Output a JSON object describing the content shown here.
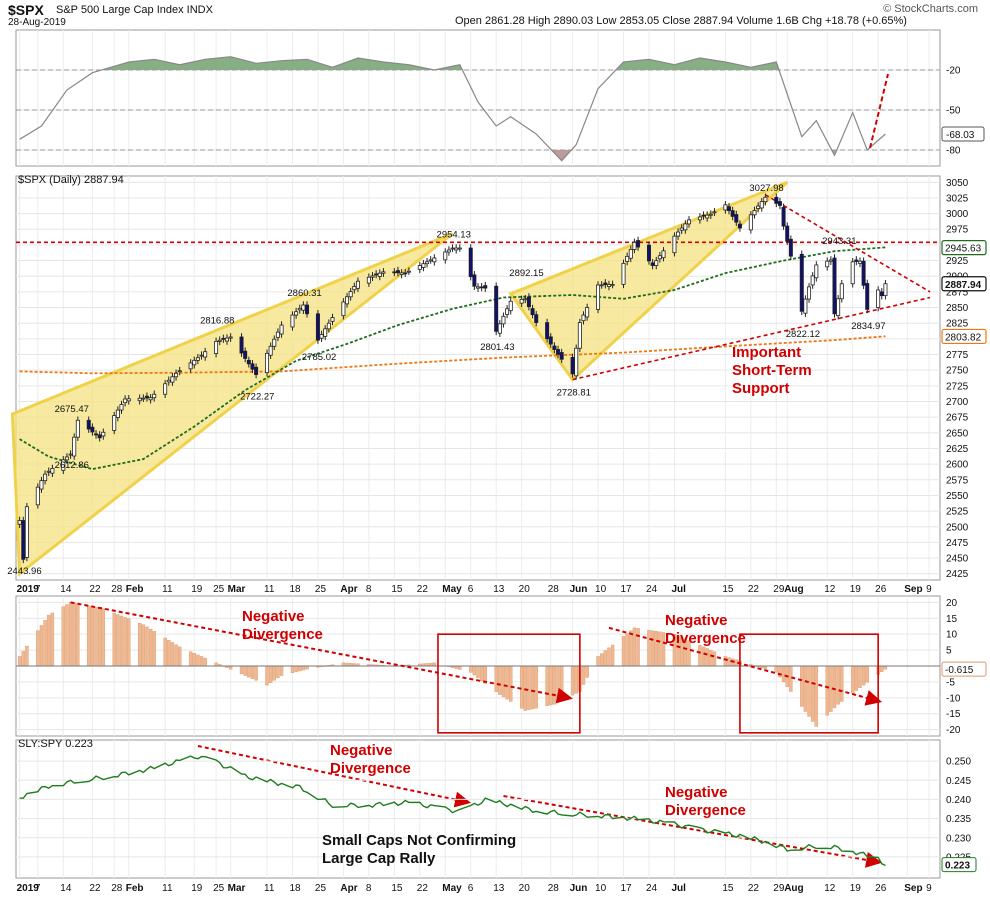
{
  "header": {
    "symbol": "$SPX",
    "name": "S&P 500 Large Cap Index INDX",
    "date": "28-Aug-2019",
    "quote": "Open 2861.28 High 2890.03 Low 2853.05 Close 2887.94 Volume 1.6B Chg +18.78 (+0.65%)",
    "brand": "© StockCharts.com"
  },
  "price_label": "$SPX (Daily) 2887.94",
  "sly_label": "SLY:SPY 0.223",
  "annotations": {
    "neg_div": "Negative\nDivergence",
    "support": "Important\nShort-Term\nSupport",
    "small_caps": "Small Caps Not Confirming\nLarge Cap Rally"
  },
  "colors": {
    "up_candle": "#ffffff",
    "down_candle": "#101070",
    "wedge_fill": "#f4e27f",
    "ma50": "#1e6b1e",
    "ma200": "#ee7711",
    "resistance": "#d00000",
    "histogram": "#f0b890",
    "ratio_line": "#1e7d1e",
    "momentum_fill": "#6a9a68"
  },
  "chart_data": [
    {
      "type": "line",
      "title": "Momentum oscillator",
      "ylim": [
        -92,
        10
      ],
      "y_ticks": [
        "-20",
        "-50",
        "-80"
      ],
      "y_tick_values": [
        -20,
        -50,
        -80
      ],
      "last_value_label": "-68.03",
      "x": [
        "2019-01-02",
        "2019-01-08",
        "2019-01-15",
        "2019-01-22",
        "2019-02-01",
        "2019-02-08",
        "2019-02-15",
        "2019-02-22",
        "2019-03-01",
        "2019-03-08",
        "2019-03-15",
        "2019-03-22",
        "2019-03-29",
        "2019-04-05",
        "2019-04-12",
        "2019-04-19",
        "2019-04-26",
        "2019-05-03",
        "2019-05-08",
        "2019-05-13",
        "2019-05-17",
        "2019-05-24",
        "2019-05-31",
        "2019-06-04",
        "2019-06-10",
        "2019-06-17",
        "2019-06-24",
        "2019-07-01",
        "2019-07-08",
        "2019-07-15",
        "2019-07-22",
        "2019-07-29",
        "2019-08-01",
        "2019-08-05",
        "2019-08-09",
        "2019-08-14",
        "2019-08-19",
        "2019-08-23",
        "2019-08-28"
      ],
      "values": [
        -72,
        -62,
        -35,
        -22,
        -14,
        -12,
        -16,
        -12,
        -10,
        -15,
        -13,
        -12,
        -18,
        -11,
        -14,
        -16,
        -20,
        -16,
        -44,
        -62,
        -55,
        -68,
        -88,
        -76,
        -34,
        -14,
        -12,
        -16,
        -11,
        -14,
        -18,
        -14,
        -38,
        -70,
        -58,
        -84,
        -52,
        -80,
        -68
      ]
    },
    {
      "type": "bar",
      "title": "$SPX (Daily) 2887.94",
      "ylim": [
        2415,
        3060
      ],
      "y_ticks": [
        "3050",
        "3025",
        "3000",
        "2975",
        "2950",
        "2925",
        "2900",
        "2875",
        "2850",
        "2825",
        "2800",
        "2775",
        "2750",
        "2725",
        "2700",
        "2675",
        "2650",
        "2625",
        "2600",
        "2575",
        "2550",
        "2525",
        "2500",
        "2475",
        "2450",
        "2425"
      ],
      "y_tick_values": [
        3050,
        3025,
        3000,
        2975,
        2950,
        2925,
        2900,
        2875,
        2850,
        2825,
        2800,
        2775,
        2750,
        2725,
        2700,
        2675,
        2650,
        2625,
        2600,
        2575,
        2550,
        2525,
        2500,
        2475,
        2450,
        2425
      ],
      "x_labels": [
        "2019",
        "7",
        "14",
        "22",
        "28",
        "Feb",
        "11",
        "19",
        "25",
        "Mar",
        "11",
        "18",
        "25",
        "Apr",
        "8",
        "15",
        "22",
        "May",
        "6",
        "13",
        "20",
        "28",
        "Jun",
        "10",
        "17",
        "24",
        "Jul",
        "15",
        "22",
        "29",
        "Aug",
        "12",
        "19",
        "26",
        "Sep",
        "9"
      ],
      "x_label_dates": [
        "2019-01-02",
        "2019-01-07",
        "2019-01-14",
        "2019-01-22",
        "2019-01-28",
        "2019-02-01",
        "2019-02-11",
        "2019-02-19",
        "2019-02-25",
        "2019-03-01",
        "2019-03-11",
        "2019-03-18",
        "2019-03-25",
        "2019-04-01",
        "2019-04-08",
        "2019-04-15",
        "2019-04-22",
        "2019-04-29",
        "2019-05-06",
        "2019-05-13",
        "2019-05-20",
        "2019-05-28",
        "2019-06-03",
        "2019-06-10",
        "2019-06-17",
        "2019-06-24",
        "2019-07-01",
        "2019-07-15",
        "2019-07-22",
        "2019-07-29",
        "2019-08-01",
        "2019-08-12",
        "2019-08-19",
        "2019-08-26",
        "2019-09-03",
        "2019-09-09"
      ],
      "labels": [
        {
          "text": "2443.96",
          "date": "2019-01-03",
          "value": 2443.96
        },
        {
          "text": "2612.86",
          "date": "2019-01-16",
          "value": 2612.86
        },
        {
          "text": "2675.47",
          "date": "2019-01-16",
          "value": 2675.47
        },
        {
          "text": "2816.88",
          "date": "2019-02-25",
          "value": 2816.88
        },
        {
          "text": "2722.27",
          "date": "2019-03-08",
          "value": 2722.27
        },
        {
          "text": "2860.31",
          "date": "2019-03-21",
          "value": 2860.31
        },
        {
          "text": "2785.02",
          "date": "2019-03-25",
          "value": 2785.02
        },
        {
          "text": "2954.13",
          "date": "2019-05-01",
          "value": 2954.13
        },
        {
          "text": "2892.15",
          "date": "2019-05-21",
          "value": 2892.15
        },
        {
          "text": "2801.43",
          "date": "2019-05-13",
          "value": 2801.43
        },
        {
          "text": "2728.81",
          "date": "2019-06-03",
          "value": 2728.81
        },
        {
          "text": "3027.98",
          "date": "2019-07-26",
          "value": 3027.98
        },
        {
          "text": "2943.31",
          "date": "2019-08-15",
          "value": 2943.31
        },
        {
          "text": "2822.12",
          "date": "2019-08-05",
          "value": 2822.12
        },
        {
          "text": "2834.97",
          "date": "2019-08-23",
          "value": 2834.97
        }
      ],
      "price_tags": [
        {
          "text": "2945.63",
          "value": 2945.63,
          "series": "50-day MA"
        },
        {
          "text": "2887.94",
          "value": 2887.94,
          "series": "close"
        },
        {
          "text": "2803.82",
          "value": 2803.82,
          "series": "200-day MA"
        }
      ],
      "resistance": 2954.13,
      "close_points": [
        [
          "2019-01-02",
          2510
        ],
        [
          "2019-01-03",
          2448
        ],
        [
          "2019-01-04",
          2532
        ],
        [
          "2019-01-09",
          2584
        ],
        [
          "2019-01-16",
          2616
        ],
        [
          "2019-01-18",
          2670
        ],
        [
          "2019-01-24",
          2642
        ],
        [
          "2019-01-31",
          2704
        ],
        [
          "2019-02-07",
          2706
        ],
        [
          "2019-02-14",
          2745
        ],
        [
          "2019-02-21",
          2774
        ],
        [
          "2019-02-25",
          2796
        ],
        [
          "2019-03-01",
          2803
        ],
        [
          "2019-03-08",
          2743
        ],
        [
          "2019-03-15",
          2822
        ],
        [
          "2019-03-21",
          2854
        ],
        [
          "2019-03-25",
          2798
        ],
        [
          "2019-03-29",
          2834
        ],
        [
          "2019-04-05",
          2892
        ],
        [
          "2019-04-12",
          2907
        ],
        [
          "2019-04-18",
          2905
        ],
        [
          "2019-04-25",
          2926
        ],
        [
          "2019-05-01",
          2945
        ],
        [
          "2019-05-03",
          2945
        ],
        [
          "2019-05-07",
          2884
        ],
        [
          "2019-05-10",
          2881
        ],
        [
          "2019-05-13",
          2812
        ],
        [
          "2019-05-17",
          2860
        ],
        [
          "2019-05-21",
          2864
        ],
        [
          "2019-05-24",
          2826
        ],
        [
          "2019-05-29",
          2783
        ],
        [
          "2019-06-03",
          2744
        ],
        [
          "2019-06-05",
          2826
        ],
        [
          "2019-06-10",
          2886
        ],
        [
          "2019-06-14",
          2887
        ],
        [
          "2019-06-20",
          2954
        ],
        [
          "2019-06-25",
          2917
        ],
        [
          "2019-07-01",
          2964
        ],
        [
          "2019-07-05",
          2990
        ],
        [
          "2019-07-11",
          2999
        ],
        [
          "2019-07-15",
          3014
        ],
        [
          "2019-07-19",
          2977
        ],
        [
          "2019-07-26",
          3026
        ],
        [
          "2019-07-30",
          3013
        ],
        [
          "2019-07-31",
          2980
        ],
        [
          "2019-08-02",
          2932
        ],
        [
          "2019-08-05",
          2844
        ],
        [
          "2019-08-07",
          2883
        ],
        [
          "2019-08-09",
          2918
        ],
        [
          "2019-08-13",
          2926
        ],
        [
          "2019-08-14",
          2840
        ],
        [
          "2019-08-16",
          2888
        ],
        [
          "2019-08-19",
          2923
        ],
        [
          "2019-08-21",
          2924
        ],
        [
          "2019-08-23",
          2847
        ],
        [
          "2019-08-26",
          2878
        ],
        [
          "2019-08-27",
          2869
        ],
        [
          "2019-08-28",
          2888
        ]
      ],
      "ma50_points": [
        [
          "2019-01-02",
          2640
        ],
        [
          "2019-01-10",
          2612
        ],
        [
          "2019-01-22",
          2592
        ],
        [
          "2019-02-05",
          2608
        ],
        [
          "2019-02-19",
          2660
        ],
        [
          "2019-03-05",
          2718
        ],
        [
          "2019-03-19",
          2765
        ],
        [
          "2019-04-02",
          2792
        ],
        [
          "2019-04-16",
          2822
        ],
        [
          "2019-05-01",
          2848
        ],
        [
          "2019-05-15",
          2866
        ],
        [
          "2019-06-03",
          2870
        ],
        [
          "2019-06-17",
          2864
        ],
        [
          "2019-07-01",
          2878
        ],
        [
          "2019-07-15",
          2905
        ],
        [
          "2019-07-31",
          2925
        ],
        [
          "2019-08-14",
          2940
        ],
        [
          "2019-08-28",
          2946
        ]
      ],
      "ma200_points": [
        [
          "2019-01-02",
          2748
        ],
        [
          "2019-01-22",
          2745
        ],
        [
          "2019-02-15",
          2746
        ],
        [
          "2019-03-15",
          2748
        ],
        [
          "2019-04-15",
          2760
        ],
        [
          "2019-05-15",
          2770
        ],
        [
          "2019-06-17",
          2778
        ],
        [
          "2019-07-15",
          2788
        ],
        [
          "2019-08-14",
          2798
        ],
        [
          "2019-08-28",
          2804
        ]
      ]
    },
    {
      "type": "bar",
      "title": "Momentum histogram",
      "ylim": [
        -22,
        22
      ],
      "y_ticks": [
        "20",
        "15",
        "10",
        "5",
        "0",
        "-5",
        "-10",
        "-15",
        "-20"
      ],
      "y_tick_values": [
        20,
        15,
        10,
        5,
        0,
        -5,
        -10,
        -15,
        -20
      ],
      "last_value_label": "-0.615",
      "points": [
        [
          "2019-01-02",
          3
        ],
        [
          "2019-01-10",
          16
        ],
        [
          "2019-01-16",
          20
        ],
        [
          "2019-01-25",
          18
        ],
        [
          "2019-02-05",
          13
        ],
        [
          "2019-02-15",
          6
        ],
        [
          "2019-02-25",
          1
        ],
        [
          "2019-03-05",
          -3
        ],
        [
          "2019-03-11",
          -6
        ],
        [
          "2019-03-15",
          -3
        ],
        [
          "2019-03-22",
          -1
        ],
        [
          "2019-04-01",
          1
        ],
        [
          "2019-04-15",
          0
        ],
        [
          "2019-04-26",
          1
        ],
        [
          "2019-05-06",
          -2
        ],
        [
          "2019-05-14",
          -9
        ],
        [
          "2019-05-21",
          -14
        ],
        [
          "2019-05-29",
          -12
        ],
        [
          "2019-06-05",
          -8
        ],
        [
          "2019-06-10",
          3
        ],
        [
          "2019-06-20",
          12
        ],
        [
          "2019-07-01",
          10
        ],
        [
          "2019-07-15",
          3
        ],
        [
          "2019-07-29",
          -2
        ],
        [
          "2019-08-02",
          -8
        ],
        [
          "2019-08-09",
          -19
        ],
        [
          "2019-08-15",
          -12
        ],
        [
          "2019-08-22",
          -6
        ],
        [
          "2019-08-28",
          -1
        ]
      ]
    },
    {
      "type": "line",
      "title": "SLY:SPY 0.223",
      "ylim": [
        0.2195,
        0.2555
      ],
      "y_ticks": [
        "0.250",
        "0.245",
        "0.240",
        "0.235",
        "0.230",
        "0.225"
      ],
      "y_tick_values": [
        0.25,
        0.245,
        0.24,
        0.235,
        0.23,
        0.225
      ],
      "last_value_label": "0.223",
      "x_labels": [
        "2019",
        "7",
        "14",
        "22",
        "28",
        "Feb",
        "11",
        "19",
        "25",
        "Mar",
        "11",
        "18",
        "25",
        "Apr",
        "8",
        "15",
        "22",
        "May",
        "6",
        "13",
        "20",
        "28",
        "Jun",
        "10",
        "17",
        "24",
        "Jul",
        "15",
        "22",
        "29",
        "Aug",
        "12",
        "19",
        "26",
        "Sep",
        "9"
      ],
      "points": [
        [
          "2019-01-02",
          0.2405
        ],
        [
          "2019-01-10",
          0.2435
        ],
        [
          "2019-01-18",
          0.2448
        ],
        [
          "2019-01-28",
          0.2462
        ],
        [
          "2019-02-07",
          0.248
        ],
        [
          "2019-02-13",
          0.2495
        ],
        [
          "2019-02-20",
          0.2512
        ],
        [
          "2019-02-25",
          0.2498
        ],
        [
          "2019-03-05",
          0.246
        ],
        [
          "2019-03-11",
          0.2448
        ],
        [
          "2019-03-20",
          0.2432
        ],
        [
          "2019-03-29",
          0.2385
        ],
        [
          "2019-04-08",
          0.2385
        ],
        [
          "2019-04-19",
          0.2392
        ],
        [
          "2019-04-26",
          0.238
        ],
        [
          "2019-05-03",
          0.2368
        ],
        [
          "2019-05-10",
          0.2398
        ],
        [
          "2019-05-17",
          0.2385
        ],
        [
          "2019-05-24",
          0.237
        ],
        [
          "2019-06-03",
          0.2362
        ],
        [
          "2019-06-10",
          0.2358
        ],
        [
          "2019-06-20",
          0.235
        ],
        [
          "2019-07-01",
          0.2335
        ],
        [
          "2019-07-10",
          0.2318
        ],
        [
          "2019-07-19",
          0.2305
        ],
        [
          "2019-07-26",
          0.229
        ],
        [
          "2019-08-01",
          0.227
        ],
        [
          "2019-08-09",
          0.2278
        ],
        [
          "2019-08-14",
          0.2275
        ],
        [
          "2019-08-20",
          0.2262
        ],
        [
          "2019-08-26",
          0.2245
        ],
        [
          "2019-08-28",
          0.223
        ]
      ]
    }
  ]
}
